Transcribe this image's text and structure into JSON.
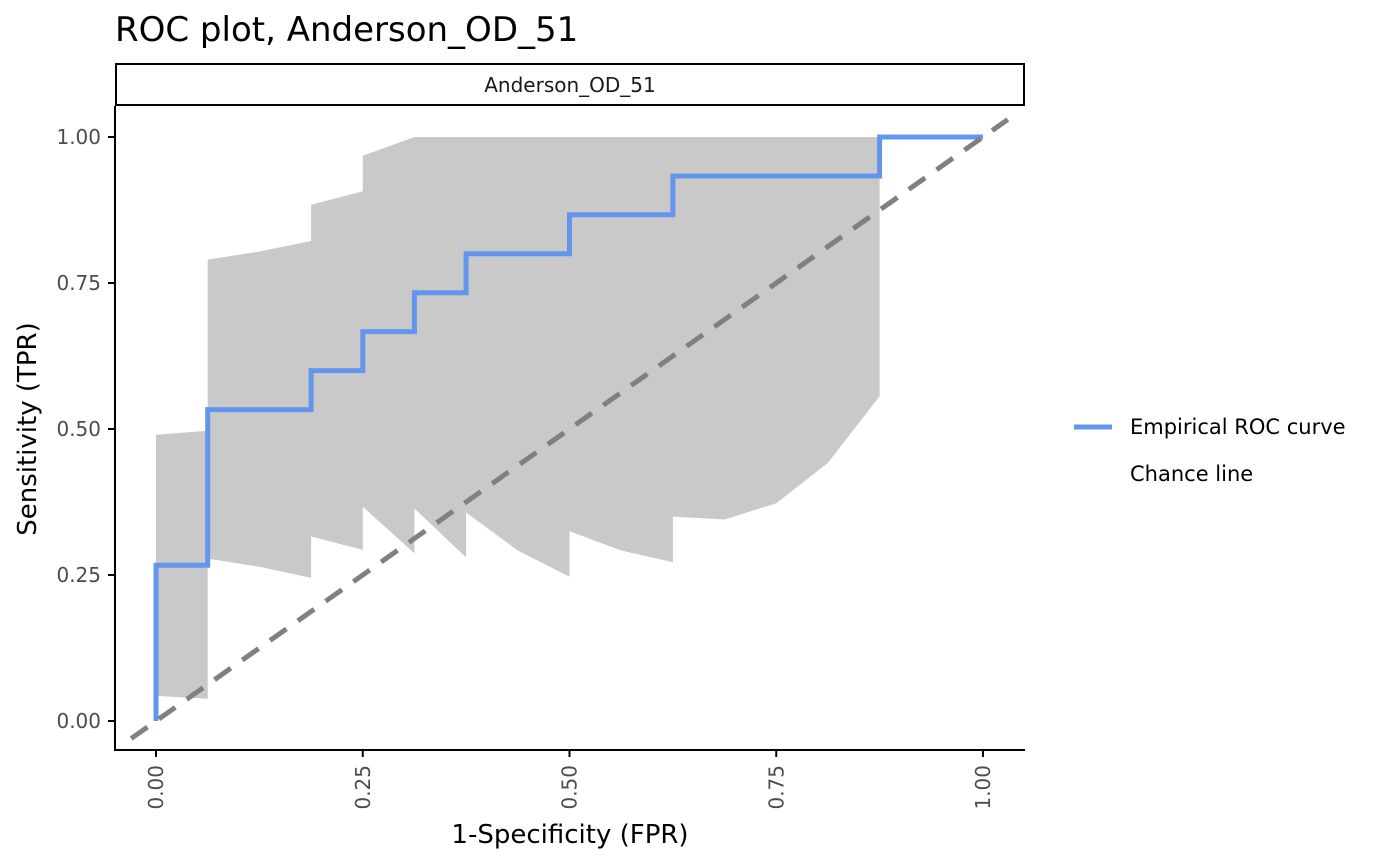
{
  "chart_data": {
    "type": "line",
    "title": "ROC plot, Anderson_OD_51",
    "panel": "Anderson_OD_51",
    "xlabel": "1-Specificity (FPR)",
    "ylabel": "Sensitivity (TPR)",
    "xlim": [
      -0.05,
      1.05
    ],
    "ylim": [
      -0.05,
      1.05
    ],
    "x_ticks": [
      "0.00",
      "0.25",
      "0.50",
      "0.75",
      "1.00"
    ],
    "y_ticks": [
      "0.00",
      "0.25",
      "0.50",
      "0.75",
      "1.00"
    ],
    "grid": false,
    "legend_position": "right",
    "colors": {
      "roc": "#6495ED",
      "band": "#C9C9C9",
      "chance": "#808080",
      "axis": "#000000"
    },
    "series": [
      {
        "name": "Empirical ROC curve",
        "style": "step",
        "x": [
          0.0,
          0.0,
          0.0625,
          0.0625,
          0.1875,
          0.1875,
          0.25,
          0.25,
          0.3125,
          0.3125,
          0.375,
          0.375,
          0.5,
          0.5,
          0.625,
          0.625,
          0.875,
          0.875,
          1.0
        ],
        "y": [
          0.0,
          0.2667,
          0.2667,
          0.5333,
          0.5333,
          0.6,
          0.6,
          0.6667,
          0.6667,
          0.7333,
          0.7333,
          0.8,
          0.8,
          0.8667,
          0.8667,
          0.9333,
          0.9333,
          1.0,
          1.0
        ]
      },
      {
        "name": "Chance line",
        "style": "dashed",
        "x": [
          -0.03,
          1.03
        ],
        "y": [
          -0.03,
          1.03
        ]
      }
    ],
    "confidence_band": {
      "upper": {
        "x": [
          0.0,
          0.0625,
          0.0625,
          0.125,
          0.1875,
          0.1875,
          0.25,
          0.25,
          0.3125,
          0.875
        ],
        "y": [
          0.49,
          0.497,
          0.79,
          0.804,
          0.822,
          0.884,
          0.907,
          0.968,
          1.0,
          1.0
        ]
      },
      "lower": {
        "x": [
          0.875,
          0.875,
          0.8125,
          0.75,
          0.6875,
          0.625,
          0.625,
          0.5625,
          0.5,
          0.5,
          0.4375,
          0.375,
          0.375,
          0.3125,
          0.3125,
          0.25,
          0.25,
          0.1875,
          0.1875,
          0.125,
          0.0625,
          0.0625,
          0.0,
          0.0
        ],
        "y": [
          0.556,
          0.556,
          0.442,
          0.373,
          0.345,
          0.35,
          0.272,
          0.292,
          0.325,
          0.247,
          0.292,
          0.357,
          0.28,
          0.364,
          0.287,
          0.367,
          0.293,
          0.316,
          0.245,
          0.264,
          0.278,
          0.038,
          0.043,
          0.49
        ]
      }
    }
  }
}
